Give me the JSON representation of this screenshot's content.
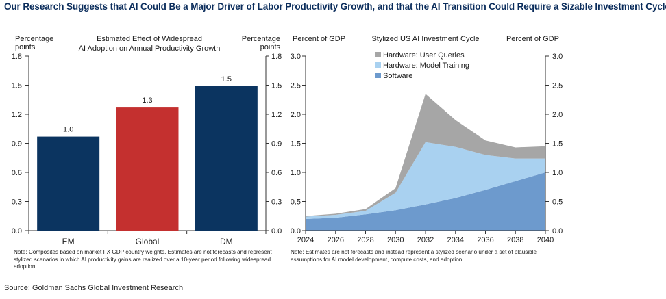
{
  "headline": "Our Research Suggests that AI Could Be a Major Driver of Labor Productivity Growth, and that the AI Transition Could Require a Sizable Investment Cycle",
  "source": "Source: Goldman Sachs Global Investment Research",
  "colors": {
    "headline": "#0b2d5c",
    "em_bar": "#0b3460",
    "global_bar": "#c4302f",
    "dm_bar": "#0b3460",
    "software": "#6d9acd",
    "training": "#a9d1f0",
    "queries": "#a6a6a6"
  },
  "chart_data": [
    {
      "type": "bar",
      "title": "Estimated Effect of Widespread AI Adoption on Annual Productivity Growth",
      "title_lines": [
        "Estimated Effect of Widespread",
        "AI Adoption on Annual Productivity Growth"
      ],
      "ylabel_left": [
        "Percentage",
        "points"
      ],
      "ylabel_right": [
        "Percentage",
        "points"
      ],
      "categories": [
        "EM",
        "Global",
        "DM"
      ],
      "values": [
        0.97,
        1.27,
        1.49
      ],
      "data_labels": [
        "1.0",
        "1.3",
        "1.5"
      ],
      "ylim": [
        0,
        1.8
      ],
      "yticks": [
        0.0,
        0.3,
        0.6,
        0.9,
        1.2,
        1.5,
        1.8
      ],
      "ytick_labels": [
        "0.0",
        "0.3",
        "0.6",
        "0.9",
        "1.2",
        "1.5",
        "1.8"
      ],
      "grid": false,
      "note": "Note: Composites based on market FX GDP country weights. Estimates are not forecasts and represent stylized scenarios in which AI productivity gains are realized over a 10-year period following widespread adoption."
    },
    {
      "type": "area",
      "stacked": true,
      "title": "Stylized US AI Investment Cycle",
      "ylabel_left": "Percent of GDP",
      "ylabel_right": "Percent of GDP",
      "x": [
        2024,
        2026,
        2028,
        2030,
        2032,
        2034,
        2036,
        2038,
        2040
      ],
      "xtick_labels": [
        "2024",
        "2026",
        "2028",
        "2030",
        "2032",
        "2034",
        "2036",
        "2038",
        "2040"
      ],
      "series": [
        {
          "name": "Software",
          "values": [
            0.2,
            0.22,
            0.28,
            0.35,
            0.45,
            0.56,
            0.7,
            0.85,
            1.0
          ]
        },
        {
          "name": "Hardware: Model Training",
          "values": [
            0.04,
            0.05,
            0.06,
            0.3,
            1.07,
            0.88,
            0.6,
            0.39,
            0.24
          ]
        },
        {
          "name": "Hardware: User Queries",
          "values": [
            0.01,
            0.02,
            0.03,
            0.08,
            0.83,
            0.46,
            0.25,
            0.19,
            0.21
          ]
        }
      ],
      "legend_order": [
        "Hardware: User Queries",
        "Hardware: Model Training",
        "Software"
      ],
      "legend_position": "top-left",
      "ylim": [
        0,
        3.0
      ],
      "yticks": [
        0.0,
        0.5,
        1.0,
        1.5,
        2.0,
        2.5,
        3.0
      ],
      "ytick_labels": [
        "0.0",
        "0.5",
        "1.0",
        "1.5",
        "2.0",
        "2.5",
        "3.0"
      ],
      "grid": false,
      "note": "Note: Estimates are not forecasts and instead represent a stylized scenario under a set of plausible assumptions for AI model development, compute costs, and adoption."
    }
  ]
}
